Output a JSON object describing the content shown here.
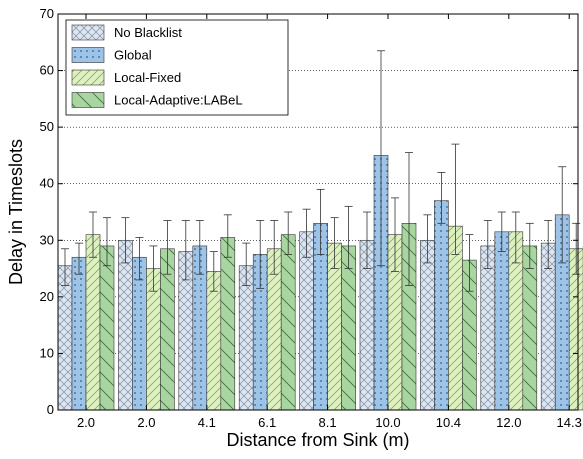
{
  "chart_data": {
    "type": "bar",
    "title": "",
    "xlabel": "Distance from Sink (m)",
    "ylabel": "Delay in Timeslots",
    "ylim": [
      0,
      70
    ],
    "yticks": [
      0,
      10,
      20,
      30,
      40,
      50,
      60,
      70
    ],
    "grid": "horizontal dotted",
    "legend_position": "top-left",
    "categories": [
      "2.0",
      "2.0",
      "4.1",
      "6.1",
      "8.1",
      "10.0",
      "10.4",
      "12.0",
      "14.3"
    ],
    "series": [
      {
        "name": "No Blacklist",
        "color": "#dde6f0",
        "pattern": "crosshatch",
        "values": [
          25.5,
          30.0,
          28.0,
          25.5,
          31.5,
          30.0,
          30.0,
          29.0,
          29.5
        ],
        "err_low": [
          22.0,
          26.0,
          23.0,
          22.0,
          27.0,
          25.0,
          26.0,
          25.0,
          25.0
        ],
        "err_high": [
          28.5,
          34.0,
          33.5,
          29.5,
          35.5,
          35.0,
          34.5,
          33.5,
          33.5
        ]
      },
      {
        "name": "Global",
        "color": "#9dc3e6",
        "pattern": "dots",
        "values": [
          27.0,
          27.0,
          29.0,
          27.5,
          33.0,
          45.0,
          37.0,
          31.5,
          34.5
        ],
        "err_low": [
          24.0,
          23.0,
          24.0,
          21.5,
          27.5,
          25.5,
          33.0,
          28.0,
          26.0
        ],
        "err_high": [
          29.5,
          30.5,
          33.5,
          33.5,
          39.0,
          63.5,
          42.0,
          35.0,
          43.0
        ]
      },
      {
        "name": "Local-Fixed",
        "color": "#ddf0c0",
        "pattern": "diagonal",
        "values": [
          31.0,
          25.0,
          24.5,
          28.5,
          29.5,
          31.0,
          32.5,
          31.5,
          28.5
        ],
        "err_low": [
          27.0,
          21.0,
          21.0,
          24.0,
          25.0,
          24.5,
          27.5,
          26.0,
          24.0
        ],
        "err_high": [
          35.0,
          29.0,
          28.0,
          33.5,
          34.0,
          37.5,
          47.0,
          35.0,
          33.0
        ]
      },
      {
        "name": "Local-Adaptive:LABeL",
        "color": "#a9d5a0",
        "pattern": "backslash",
        "values": [
          29.0,
          28.5,
          30.5,
          31.0,
          29.0,
          33.0,
          26.5,
          29.0,
          29.0
        ],
        "err_low": [
          25.5,
          24.0,
          27.0,
          27.5,
          25.0,
          22.0,
          21.0,
          25.0,
          23.0
        ],
        "err_high": [
          34.0,
          33.5,
          34.5,
          35.0,
          36.0,
          45.5,
          31.0,
          33.0,
          36.5
        ]
      }
    ]
  }
}
